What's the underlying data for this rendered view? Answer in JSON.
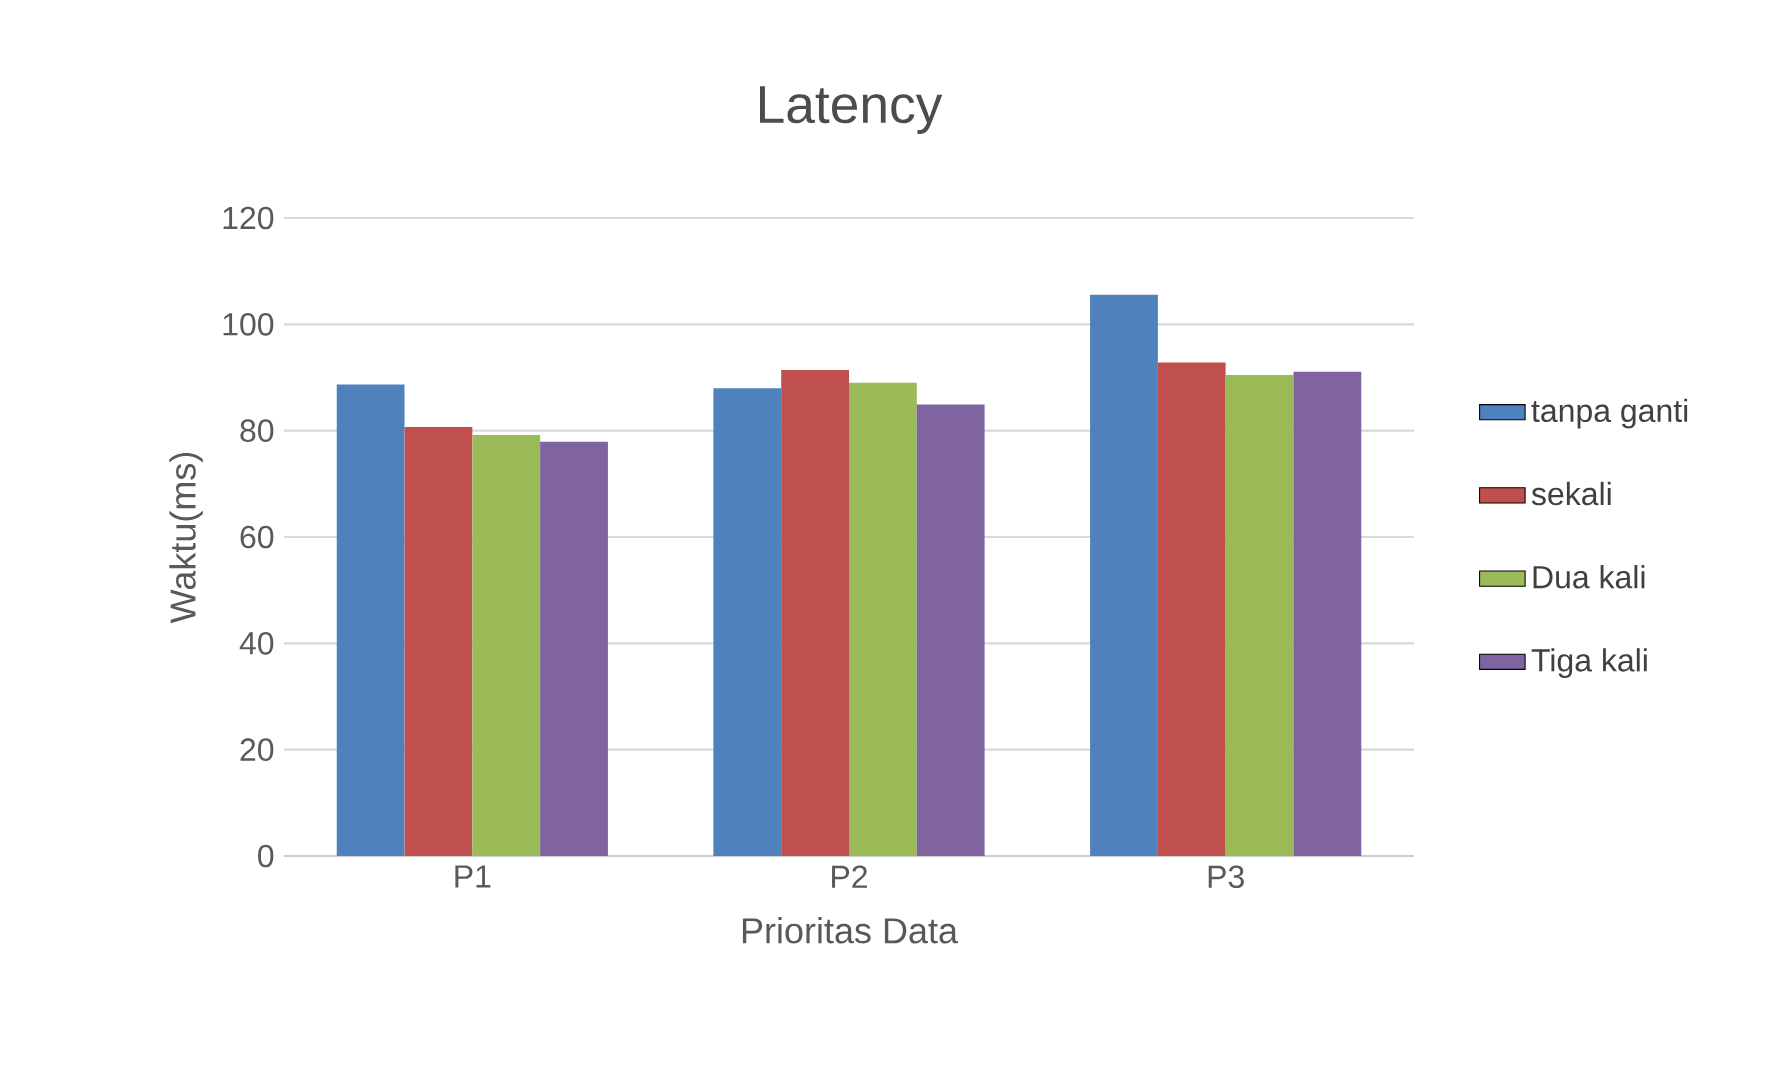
{
  "chart_data": {
    "type": "bar",
    "title": "Latency",
    "xlabel": "Prioritas Data",
    "ylabel": "Waktu(ms)",
    "categories": [
      "P1",
      "P2",
      "P3"
    ],
    "series": [
      {
        "name": "tanpa ganti",
        "color": "#4f81bd",
        "values": [
          88.7,
          88.0,
          105.6
        ]
      },
      {
        "name": "sekali",
        "color": "#c0504d",
        "values": [
          80.7,
          91.4,
          92.8
        ]
      },
      {
        "name": "Dua kali",
        "color": "#9bbb59",
        "values": [
          79.2,
          89.0,
          90.5
        ]
      },
      {
        "name": "Tiga kali",
        "color": "#8064a2",
        "values": [
          77.9,
          84.9,
          91.1
        ]
      }
    ],
    "ylim": [
      0,
      120
    ],
    "yticks": [
      0,
      20,
      40,
      60,
      80,
      100,
      120
    ],
    "grid": "y",
    "legend": "right"
  }
}
